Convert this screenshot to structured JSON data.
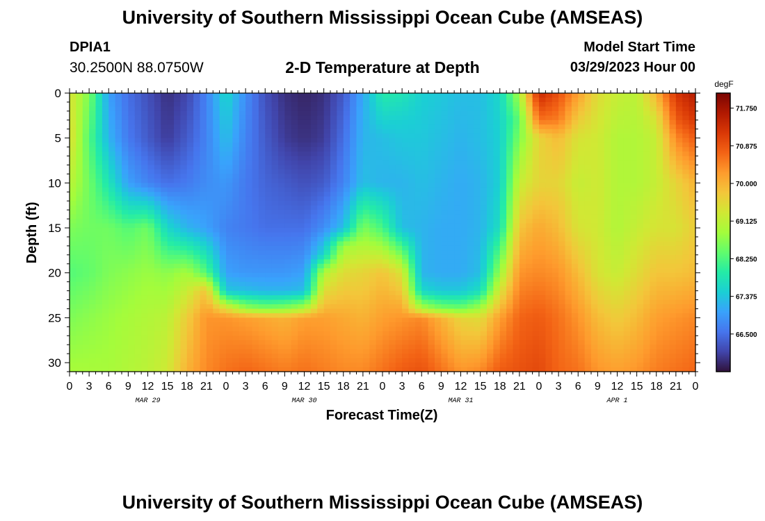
{
  "header": {
    "title": "University of Southern Mississippi Ocean Cube (AMSEAS)",
    "station_id": "DPIA1",
    "station_coords": "30.2500N  88.0750W",
    "plot_title": "2-D Temperature at Depth",
    "model_start_label": "Model Start Time",
    "model_start_value": "03/29/2023 Hour 00"
  },
  "footer": {
    "title": "University of Southern Mississippi Ocean Cube (AMSEAS)"
  },
  "colors": {
    "colormap": [
      "#30123b",
      "#4145ab",
      "#4675ed",
      "#39a2fc",
      "#1bcfd4",
      "#24eca6",
      "#61fc6c",
      "#a4fc3b",
      "#d1e834",
      "#f3c63a",
      "#fe9b2d",
      "#f36315",
      "#d93806",
      "#b11901",
      "#7a0402"
    ]
  },
  "chart_data": {
    "type": "heatmap",
    "title": "2-D Temperature at Depth",
    "xlabel": "Forecast Time(Z)",
    "ylabel": "Depth (ft)",
    "ylim": [
      0,
      31
    ],
    "y_ticks": [
      "0",
      "5",
      "10",
      "15",
      "20",
      "25",
      "30"
    ],
    "y_tick_values": [
      0,
      5,
      10,
      15,
      20,
      25,
      30
    ],
    "x_tick_labels": [
      "0",
      "3",
      "6",
      "9",
      "12",
      "15",
      "18",
      "21",
      "0",
      "3",
      "6",
      "9",
      "12",
      "15",
      "18",
      "21",
      "0",
      "3",
      "6",
      "9",
      "12",
      "15",
      "18",
      "21",
      "0",
      "3",
      "6",
      "9",
      "12",
      "15",
      "18",
      "21",
      "0"
    ],
    "x_range_hours": [
      0,
      96
    ],
    "date_labels": [
      {
        "label": "MAR 29",
        "hour": 12
      },
      {
        "label": "MAR 30",
        "hour": 36
      },
      {
        "label": "MAR 31",
        "hour": 60
      },
      {
        "label": "APR 1",
        "hour": 84
      }
    ],
    "colorbar": {
      "unit": "degF",
      "min": 65.625,
      "max": 72.1,
      "ticks": [
        "71.750",
        "70.875",
        "70.000",
        "69.125",
        "68.250",
        "67.375",
        "66.500"
      ],
      "tick_values": [
        71.75,
        70.875,
        70.0,
        69.125,
        68.25,
        67.375,
        66.5
      ]
    },
    "hours": [
      0,
      3,
      6,
      9,
      12,
      15,
      18,
      21,
      24,
      27,
      30,
      33,
      36,
      39,
      42,
      45,
      48,
      51,
      54,
      57,
      60,
      63,
      66,
      69,
      72,
      75,
      78,
      81,
      84,
      87,
      90,
      93,
      96
    ],
    "depth_profiles": [
      {
        "hour": 0,
        "d": [
          0,
          5,
          10,
          15,
          20,
          25,
          31
        ],
        "t": [
          69.4,
          69.5,
          69.1,
          68.6,
          68.3,
          68.6,
          68.9
        ]
      },
      {
        "hour": 3,
        "d": [
          0,
          5,
          10,
          15,
          20,
          25,
          31
        ],
        "t": [
          68.6,
          68.3,
          68.5,
          68.5,
          68.4,
          68.7,
          68.9
        ]
      },
      {
        "hour": 6,
        "d": [
          0,
          5,
          10,
          15,
          20,
          25,
          31
        ],
        "t": [
          67.0,
          67.2,
          67.8,
          68.5,
          68.6,
          68.8,
          68.9
        ]
      },
      {
        "hour": 9,
        "d": [
          0,
          5,
          10,
          15,
          20,
          25,
          31
        ],
        "t": [
          66.5,
          66.6,
          67.0,
          68.3,
          68.7,
          68.9,
          69.0
        ]
      },
      {
        "hour": 12,
        "d": [
          0,
          5,
          10,
          15,
          20,
          25,
          31
        ],
        "t": [
          66.2,
          66.3,
          66.7,
          68.5,
          68.8,
          69.0,
          69.1
        ]
      },
      {
        "hour": 15,
        "d": [
          0,
          5,
          10,
          15,
          20,
          25,
          31
        ],
        "t": [
          65.9,
          66.0,
          66.5,
          67.6,
          68.7,
          69.1,
          69.3
        ]
      },
      {
        "hour": 18,
        "d": [
          0,
          5,
          10,
          15,
          20,
          25,
          31
        ],
        "t": [
          66.1,
          66.3,
          66.6,
          67.2,
          68.9,
          69.7,
          70.0
        ]
      },
      {
        "hour": 21,
        "d": [
          0,
          5,
          10,
          15,
          20,
          22,
          25,
          31
        ],
        "t": [
          66.7,
          66.7,
          66.8,
          67.0,
          68.3,
          69.8,
          70.3,
          70.4
        ]
      },
      {
        "hour": 24,
        "d": [
          0,
          5,
          10,
          15,
          20,
          22,
          24,
          25,
          31
        ],
        "t": [
          67.6,
          67.3,
          66.9,
          66.7,
          67.0,
          67.4,
          69.5,
          70.3,
          70.6
        ]
      },
      {
        "hour": 27,
        "d": [
          0,
          5,
          10,
          15,
          20,
          22,
          24,
          25,
          31
        ],
        "t": [
          66.8,
          66.7,
          66.6,
          66.6,
          66.9,
          67.3,
          68.8,
          70.2,
          70.7
        ]
      },
      {
        "hour": 30,
        "d": [
          0,
          5,
          10,
          15,
          20,
          22,
          24,
          25,
          31
        ],
        "t": [
          66.2,
          66.3,
          66.4,
          66.5,
          66.9,
          67.2,
          68.6,
          70.1,
          70.6
        ]
      },
      {
        "hour": 33,
        "d": [
          0,
          5,
          10,
          15,
          20,
          22,
          24,
          25,
          31
        ],
        "t": [
          65.9,
          66.0,
          66.3,
          66.5,
          66.9,
          67.2,
          68.7,
          70.0,
          70.5
        ]
      },
      {
        "hour": 36,
        "d": [
          0,
          5,
          10,
          15,
          20,
          22,
          24,
          25,
          31
        ],
        "t": [
          65.8,
          65.9,
          66.2,
          66.5,
          67.0,
          67.3,
          69.0,
          70.2,
          70.6
        ]
      },
      {
        "hour": 39,
        "d": [
          0,
          5,
          10,
          15,
          18,
          20,
          25,
          31
        ],
        "t": [
          65.9,
          66.0,
          66.3,
          66.8,
          67.6,
          69.0,
          70.2,
          70.5
        ]
      },
      {
        "hour": 42,
        "d": [
          0,
          5,
          10,
          15,
          17,
          20,
          25,
          31
        ],
        "t": [
          66.3,
          66.5,
          66.7,
          67.3,
          68.8,
          69.5,
          70.1,
          70.4
        ]
      },
      {
        "hour": 45,
        "d": [
          0,
          5,
          10,
          15,
          20,
          25,
          31
        ],
        "t": [
          67.1,
          67.2,
          67.3,
          68.6,
          69.6,
          70.0,
          70.4
        ]
      },
      {
        "hour": 48,
        "d": [
          0,
          5,
          10,
          15,
          20,
          25,
          31
        ],
        "t": [
          67.9,
          67.3,
          67.2,
          68.2,
          69.8,
          70.2,
          70.6
        ]
      },
      {
        "hour": 51,
        "d": [
          0,
          3,
          5,
          10,
          15,
          20,
          25,
          31
        ],
        "t": [
          67.8,
          67.5,
          67.4,
          67.2,
          67.3,
          69.4,
          70.3,
          70.8
        ]
      },
      {
        "hour": 54,
        "d": [
          0,
          5,
          10,
          15,
          20,
          22,
          24,
          25,
          31
        ],
        "t": [
          67.5,
          67.4,
          67.3,
          67.2,
          67.2,
          67.6,
          69.0,
          70.4,
          70.9
        ]
      },
      {
        "hour": 57,
        "d": [
          0,
          5,
          10,
          15,
          20,
          22,
          24,
          25,
          31
        ],
        "t": [
          67.4,
          67.3,
          67.2,
          67.1,
          67.1,
          67.4,
          68.6,
          70.0,
          70.6
        ]
      },
      {
        "hour": 60,
        "d": [
          0,
          5,
          10,
          15,
          20,
          22,
          24,
          25,
          31
        ],
        "t": [
          67.3,
          67.2,
          67.1,
          67.1,
          67.1,
          67.4,
          68.5,
          69.6,
          70.3
        ]
      },
      {
        "hour": 63,
        "d": [
          0,
          5,
          10,
          15,
          20,
          22,
          24,
          25,
          31
        ],
        "t": [
          67.3,
          67.3,
          67.2,
          67.2,
          67.3,
          67.7,
          68.9,
          69.5,
          70.4
        ]
      },
      {
        "hour": 66,
        "d": [
          0,
          5,
          10,
          15,
          20,
          25,
          31
        ],
        "t": [
          67.6,
          67.5,
          67.5,
          67.7,
          68.8,
          70.2,
          70.8
        ]
      },
      {
        "hour": 69,
        "d": [
          0,
          3,
          5,
          10,
          15,
          20,
          25,
          31
        ],
        "t": [
          68.9,
          68.4,
          68.6,
          69.2,
          69.8,
          70.3,
          70.7,
          70.9
        ]
      },
      {
        "hour": 72,
        "d": [
          0,
          3,
          5,
          10,
          15,
          20,
          25,
          31
        ],
        "t": [
          71.4,
          70.6,
          69.6,
          69.6,
          70.1,
          70.4,
          70.8,
          71.0
        ]
      },
      {
        "hour": 75,
        "d": [
          0,
          3,
          5,
          10,
          15,
          20,
          25,
          31
        ],
        "t": [
          70.9,
          70.5,
          69.9,
          69.6,
          69.9,
          70.3,
          70.6,
          70.7
        ]
      },
      {
        "hour": 78,
        "d": [
          0,
          5,
          10,
          15,
          20,
          25,
          31
        ],
        "t": [
          70.2,
          69.4,
          69.2,
          69.4,
          69.9,
          70.3,
          70.6
        ]
      },
      {
        "hour": 81,
        "d": [
          0,
          5,
          10,
          15,
          20,
          25,
          31
        ],
        "t": [
          69.5,
          69.3,
          69.3,
          69.3,
          69.4,
          69.9,
          70.3
        ]
      },
      {
        "hour": 84,
        "d": [
          0,
          5,
          10,
          15,
          20,
          25,
          31
        ],
        "t": [
          69.2,
          69.0,
          69.0,
          69.0,
          69.2,
          69.7,
          70.2
        ]
      },
      {
        "hour": 87,
        "d": [
          0,
          5,
          10,
          15,
          20,
          25,
          31
        ],
        "t": [
          69.1,
          69.0,
          69.0,
          69.2,
          69.5,
          69.9,
          70.3
        ]
      },
      {
        "hour": 90,
        "d": [
          0,
          3,
          5,
          10,
          15,
          20,
          25,
          31
        ],
        "t": [
          70.0,
          69.4,
          69.2,
          69.2,
          69.4,
          69.8,
          70.2,
          70.5
        ]
      },
      {
        "hour": 93,
        "d": [
          0,
          3,
          5,
          10,
          15,
          20,
          25,
          31
        ],
        "t": [
          71.2,
          70.8,
          70.4,
          69.6,
          69.4,
          69.8,
          70.3,
          70.6
        ]
      },
      {
        "hour": 96,
        "d": [
          0,
          3,
          5,
          10,
          15,
          20,
          25,
          31
        ],
        "t": [
          71.6,
          71.2,
          70.8,
          70.0,
          69.7,
          69.9,
          70.4,
          70.7
        ]
      }
    ]
  }
}
